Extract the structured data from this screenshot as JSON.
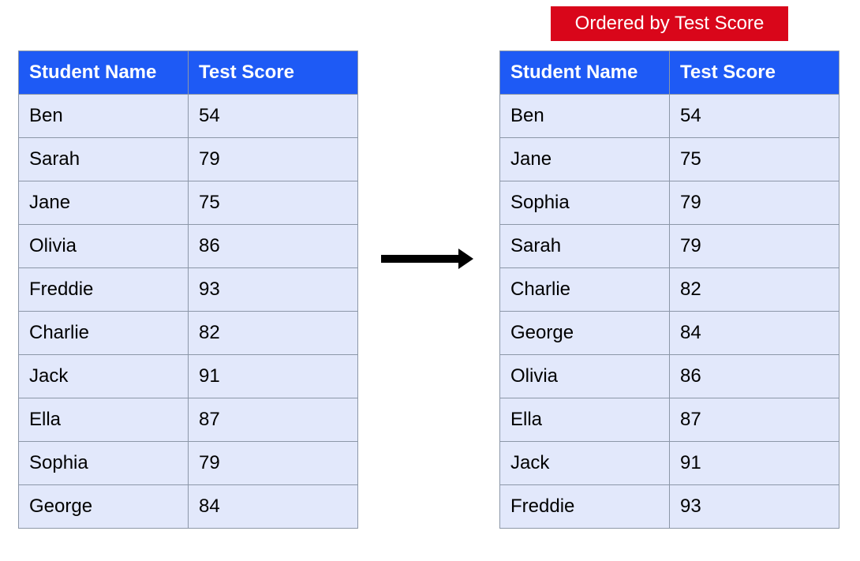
{
  "colors": {
    "header_bg": "#1e5af5",
    "cell_bg": "#e2e8fb",
    "badge_bg": "#d9061a",
    "border": "#8c97a8"
  },
  "badge": {
    "text": "Ordered by Test Score"
  },
  "arrow_icon": "arrow-right-icon",
  "unsorted_table": {
    "headers": [
      "Student Name",
      "Test Score"
    ],
    "rows": [
      [
        "Ben",
        "54"
      ],
      [
        "Sarah",
        "79"
      ],
      [
        "Jane",
        "75"
      ],
      [
        "Olivia",
        "86"
      ],
      [
        "Freddie",
        "93"
      ],
      [
        "Charlie",
        "82"
      ],
      [
        "Jack",
        "91"
      ],
      [
        "Ella",
        "87"
      ],
      [
        "Sophia",
        "79"
      ],
      [
        "George",
        "84"
      ]
    ]
  },
  "sorted_table": {
    "headers": [
      "Student Name",
      "Test Score"
    ],
    "rows": [
      [
        "Ben",
        "54"
      ],
      [
        "Jane",
        "75"
      ],
      [
        "Sophia",
        "79"
      ],
      [
        "Sarah",
        "79"
      ],
      [
        "Charlie",
        "82"
      ],
      [
        "George",
        "84"
      ],
      [
        "Olivia",
        "86"
      ],
      [
        "Ella",
        "87"
      ],
      [
        "Jack",
        "91"
      ],
      [
        "Freddie",
        "93"
      ]
    ]
  }
}
